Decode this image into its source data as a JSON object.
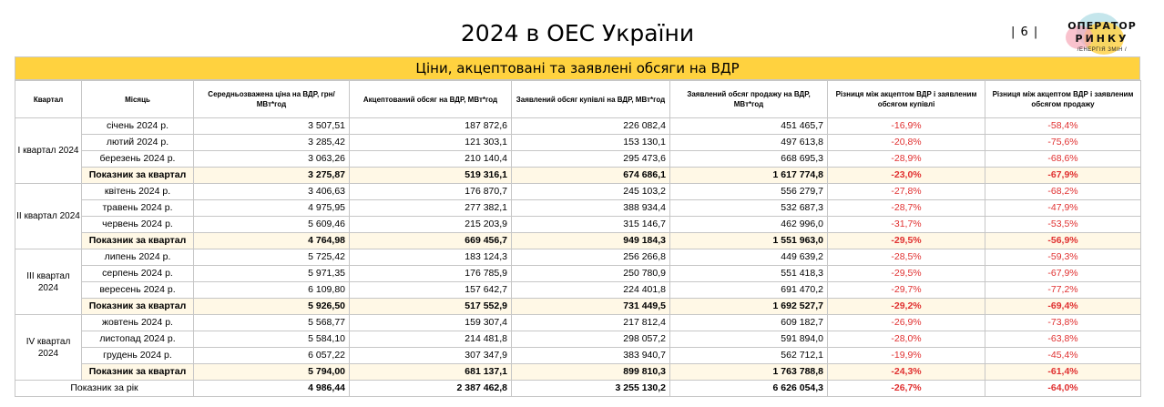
{
  "header": {
    "title": "2024 в ОЕС України",
    "page_number": "| 6 |",
    "logo_line1": "ОПЕРАТОР",
    "logo_line2": "РИНКУ",
    "logo_line3": "/ЕНЕРГІЯ ЗМІН /"
  },
  "table": {
    "title": "Ціни, акцептовані та заявлені обсяги на ВДР",
    "columns": [
      "Квартал",
      "Місяць",
      "Середньозважена ціна на ВДР, грн/МВт*год",
      "Акцептований обсяг на ВДР, МВт*год",
      "Заявлений обсяг купівлі на ВДР, МВт*год",
      "Заявлений обсяг продажу на ВДР, МВт*год",
      "Різниця між акцептом ВДР і заявленим обсягом купівлі",
      "Різниця між акцептом ВДР і заявленим обсягом продажу"
    ],
    "quarters": [
      {
        "label": "І квартал 2024",
        "rows": [
          [
            "січень 2024 р.",
            "3 507,51",
            "187 872,6",
            "226 082,4",
            "451 465,7",
            "-16,9%",
            "-58,4%"
          ],
          [
            "лютий 2024 р.",
            "3 285,42",
            "121 303,1",
            "153 130,1",
            "497 613,8",
            "-20,8%",
            "-75,6%"
          ],
          [
            "березень 2024 р.",
            "3 063,26",
            "210 140,4",
            "295 473,6",
            "668 695,3",
            "-28,9%",
            "-68,6%"
          ],
          [
            "Показник за квартал",
            "3 275,87",
            "519 316,1",
            "674 686,1",
            "1 617 774,8",
            "-23,0%",
            "-67,9%"
          ]
        ]
      },
      {
        "label": "ІІ квартал 2024",
        "rows": [
          [
            "квітень 2024 р.",
            "3 406,63",
            "176 870,7",
            "245 103,2",
            "556 279,7",
            "-27,8%",
            "-68,2%"
          ],
          [
            "травень 2024 р.",
            "4 975,95",
            "277 382,1",
            "388 934,4",
            "532 687,3",
            "-28,7%",
            "-47,9%"
          ],
          [
            "червень 2024 р.",
            "5 609,46",
            "215 203,9",
            "315 146,7",
            "462 996,0",
            "-31,7%",
            "-53,5%"
          ],
          [
            "Показник за квартал",
            "4 764,98",
            "669 456,7",
            "949 184,3",
            "1 551 963,0",
            "-29,5%",
            "-56,9%"
          ]
        ]
      },
      {
        "label": "ІІІ квартал 2024",
        "rows": [
          [
            "липень 2024 р.",
            "5 725,42",
            "183 124,3",
            "256 266,8",
            "449 639,2",
            "-28,5%",
            "-59,3%"
          ],
          [
            "серпень 2024 р.",
            "5 971,35",
            "176 785,9",
            "250 780,9",
            "551 418,3",
            "-29,5%",
            "-67,9%"
          ],
          [
            "вересень 2024 р.",
            "6 109,80",
            "157 642,7",
            "224 401,8",
            "691 470,2",
            "-29,7%",
            "-77,2%"
          ],
          [
            "Показник за квартал",
            "5 926,50",
            "517 552,9",
            "731 449,5",
            "1 692 527,7",
            "-29,2%",
            "-69,4%"
          ]
        ]
      },
      {
        "label": "IV квартал 2024",
        "rows": [
          [
            "жовтень 2024 р.",
            "5 568,77",
            "159 307,4",
            "217 812,4",
            "609 182,7",
            "-26,9%",
            "-73,8%"
          ],
          [
            "листопад 2024 р.",
            "5 584,10",
            "214 481,8",
            "298 057,2",
            "591 894,0",
            "-28,0%",
            "-63,8%"
          ],
          [
            "грудень 2024 р.",
            "6 057,22",
            "307 347,9",
            "383 940,7",
            "562 712,1",
            "-19,9%",
            "-45,4%"
          ],
          [
            "Показник за квартал",
            "5 794,00",
            "681 137,1",
            "899 810,3",
            "1 763 788,8",
            "-24,3%",
            "-61,4%"
          ]
        ]
      }
    ],
    "year_row": [
      "Показник за рік",
      "4 986,44",
      "2 387 462,8",
      "3 255 130,2",
      "6 626 054,3",
      "-26,7%",
      "-64,0%"
    ]
  }
}
